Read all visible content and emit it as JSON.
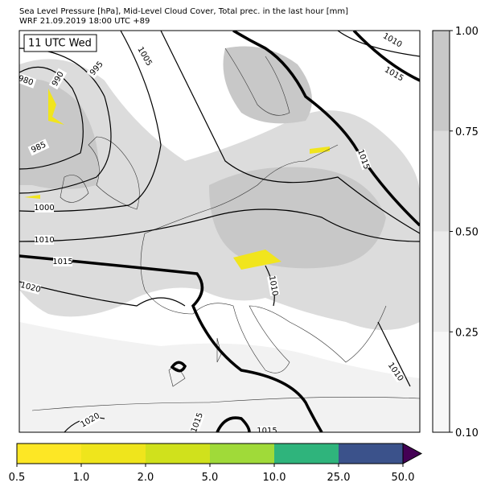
{
  "header": {
    "title": "Sea Level Pressure [hPa], Mid-Level Cloud Cover, Total prec. in the last hour [mm]",
    "subtitle": "WRF 21.09.2019 18:00 UTC +89"
  },
  "map": {
    "time_label": "11 UTC Wed",
    "contour_labels": [
      "990",
      "995",
      "1005",
      "1010",
      "1015",
      "980",
      "985",
      "1000",
      "1010",
      "1015",
      "1020",
      "1015",
      "1010",
      "1010",
      "1020",
      "1015",
      "1015"
    ]
  },
  "cloud_colorbar": {
    "ticks": [
      "0.10",
      "0.25",
      "0.50",
      "0.75",
      "1.00"
    ],
    "colors": [
      "#f7f7f7",
      "#ebebeb",
      "#dcdcdc",
      "#c8c8c8"
    ]
  },
  "precip_colorbar": {
    "ticks": [
      "0.5",
      "1.0",
      "2.0",
      "5.0",
      "10.0",
      "25.0",
      "50.0"
    ],
    "colors": [
      "#fde725",
      "#efe51c",
      "#d0e11c",
      "#a0da39",
      "#2fb47c",
      "#3b528b"
    ],
    "extend_color": "#440154"
  }
}
